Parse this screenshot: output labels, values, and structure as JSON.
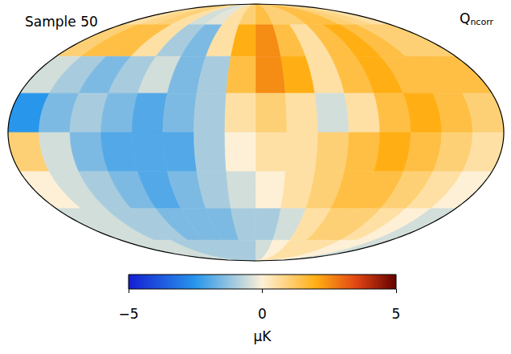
{
  "chart_data": {
    "type": "heatmap",
    "title": "Sample 50",
    "label": "Q",
    "label_subscript": "ncorr",
    "values": [
      [
        0.5,
        0.8,
        1,
        0.5,
        -0.5,
        -0.3,
        0.5,
        1,
        1.5,
        1,
        1,
        1.5,
        1.5,
        1,
        0.8,
        0.5
      ],
      [
        1,
        1.5,
        1.5,
        0.5,
        -1,
        -1.5,
        0.5,
        2,
        2.5,
        1.5,
        0.5,
        1.5,
        2,
        1.5,
        1,
        1
      ],
      [
        -0.5,
        -1,
        -1.5,
        -1,
        -0.5,
        -1.5,
        -1,
        1.5,
        2.5,
        2,
        0.5,
        1.5,
        2,
        1.5,
        1.5,
        1.5
      ],
      [
        -2.5,
        -1.5,
        -1,
        -1.5,
        -2,
        -1.5,
        -1,
        0.5,
        1,
        0.5,
        -0.5,
        0.5,
        1.5,
        2,
        1.5,
        1
      ],
      [
        1,
        -0.5,
        -1.5,
        -2,
        -2,
        -2,
        -1,
        0,
        0.5,
        0.5,
        1,
        1.5,
        2,
        1.5,
        1,
        0.5
      ],
      [
        0,
        -0.5,
        -1,
        -1.5,
        -2,
        -1.5,
        -1,
        -0.5,
        0,
        0.5,
        1,
        1.5,
        1.5,
        1,
        0.5,
        0
      ],
      [
        -0.5,
        -0.5,
        -1,
        -1,
        -1.5,
        -1.5,
        -1.5,
        -1,
        -1,
        -0.5,
        0.5,
        1,
        1,
        0.5,
        0,
        -0.5
      ],
      [
        -0.5,
        -0.5,
        -0.5,
        -1,
        -1,
        -1,
        -1,
        -1,
        -0.5,
        0,
        0.5,
        0.5,
        0.5,
        0,
        0,
        -0.5
      ]
    ],
    "colorbar": {
      "range": [
        -5,
        5
      ],
      "ticks": [
        -5,
        0,
        5
      ],
      "label": "μK"
    }
  }
}
